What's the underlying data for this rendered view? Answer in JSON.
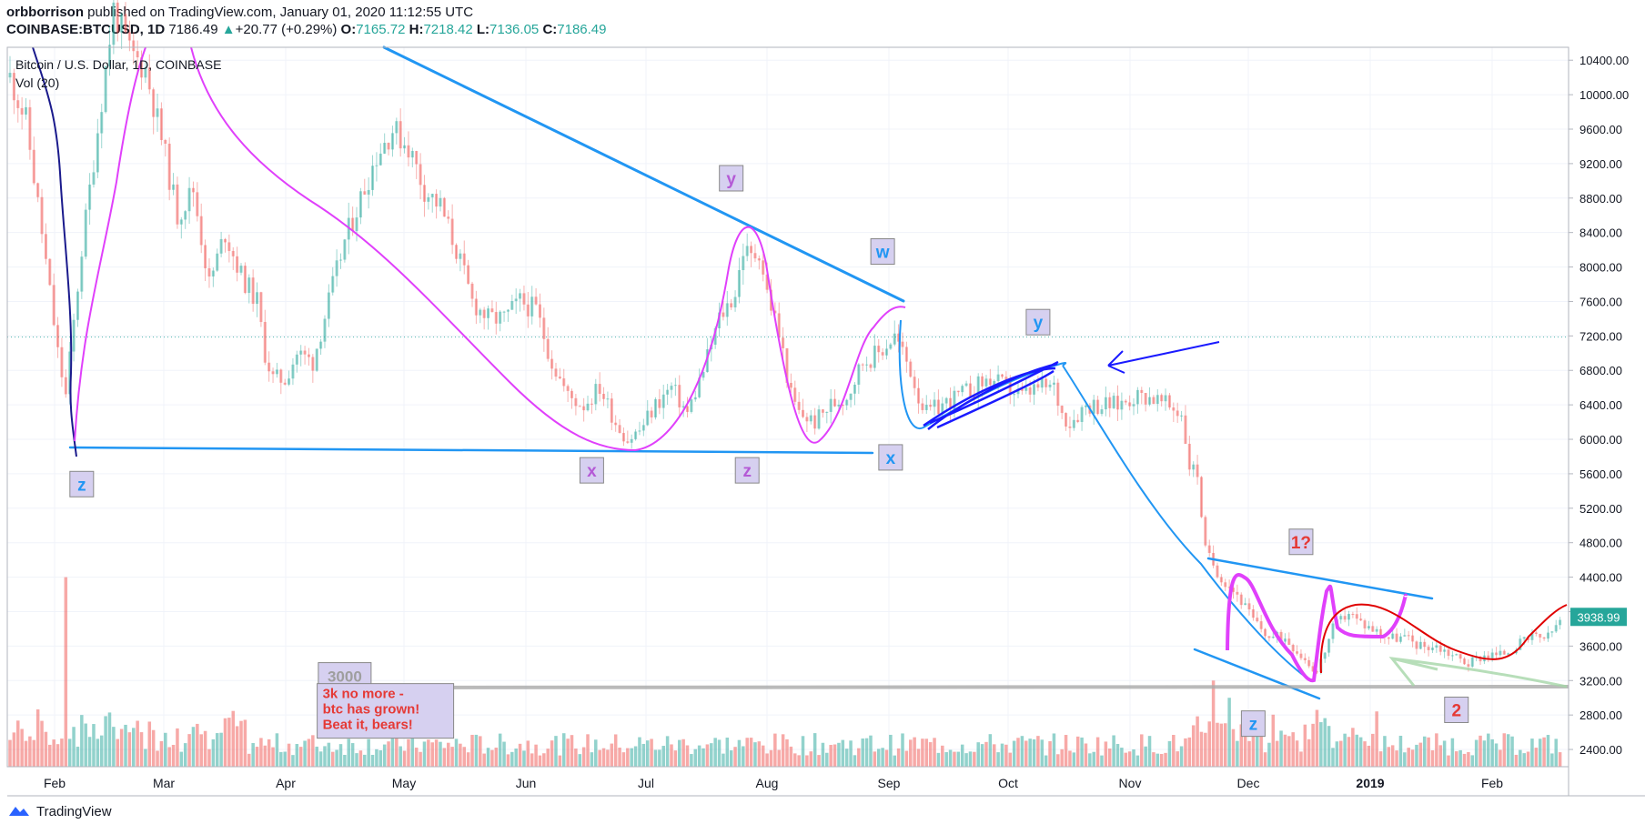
{
  "header": {
    "author": "orbborrison",
    "published_text": "published on TradingView.com, January 01, 2020 11:12:55 UTC",
    "symbol": "COINBASE:BTCUSD, 1D",
    "last": "7186.49",
    "change": "+20.77 (+0.29%)",
    "o_label": "O:",
    "o": "7165.72",
    "h_label": "H:",
    "h": "7218.42",
    "l_label": "L:",
    "l": "7136.05",
    "c_label": "C:",
    "c": "7186.49"
  },
  "legend": {
    "series_title": "Bitcoin / U.S. Dollar, 1D, COINBASE",
    "volume_title": "Vol (20)"
  },
  "footer": {
    "brand": "TradingView"
  },
  "colors": {
    "up": "#26a69a",
    "down": "#ef5350",
    "trendline": "#2196f3",
    "magenta": "#e040fb",
    "navy": "#1a1aff",
    "red_curve": "#e00000",
    "label_bg": "#d6d0f0"
  },
  "chart_data": {
    "type": "candlestick",
    "x_ticks": [
      "Feb",
      "Mar",
      "Apr",
      "May",
      "Jun",
      "Jul",
      "Aug",
      "Sep",
      "Oct",
      "Nov",
      "Dec",
      "2019",
      "Feb"
    ],
    "y_ticks": [
      10400,
      10000,
      9600,
      9200,
      8800,
      8400,
      8000,
      7600,
      7200,
      6800,
      6400,
      6000,
      5600,
      5200,
      4800,
      4400,
      4000,
      3600,
      3200,
      2800,
      2400
    ],
    "ylim": [
      2200,
      10550
    ],
    "last_price_label": "3938.99",
    "last_price": 3938.99,
    "horizontal_line_price": 7186.49,
    "close_series": [
      [
        0,
        10200
      ],
      [
        4,
        9700
      ],
      [
        8,
        8400
      ],
      [
        12,
        7000
      ],
      [
        14,
        6500
      ],
      [
        18,
        8200
      ],
      [
        22,
        9600
      ],
      [
        26,
        11000
      ],
      [
        30,
        10500
      ],
      [
        34,
        10300
      ],
      [
        38,
        9500
      ],
      [
        42,
        8600
      ],
      [
        46,
        8900
      ],
      [
        50,
        7800
      ],
      [
        54,
        8400
      ],
      [
        58,
        7900
      ],
      [
        62,
        7600
      ],
      [
        64,
        7000
      ],
      [
        66,
        6700
      ],
      [
        69,
        6700
      ],
      [
        72,
        7000
      ],
      [
        76,
        6900
      ],
      [
        80,
        7600
      ],
      [
        84,
        8300
      ],
      [
        88,
        8800
      ],
      [
        92,
        9300
      ],
      [
        96,
        9600
      ],
      [
        100,
        9400
      ],
      [
        104,
        8900
      ],
      [
        108,
        8700
      ],
      [
        112,
        8200
      ],
      [
        116,
        7600
      ],
      [
        120,
        7400
      ],
      [
        124,
        7400
      ],
      [
        128,
        7600
      ],
      [
        132,
        7500
      ],
      [
        136,
        6900
      ],
      [
        140,
        6500
      ],
      [
        144,
        6400
      ],
      [
        148,
        6600
      ],
      [
        152,
        6200
      ],
      [
        155,
        6000
      ],
      [
        158,
        6100
      ],
      [
        162,
        6400
      ],
      [
        166,
        6600
      ],
      [
        170,
        6300
      ],
      [
        174,
        6800
      ],
      [
        178,
        7400
      ],
      [
        182,
        7700
      ],
      [
        184,
        8200
      ],
      [
        186,
        8100
      ],
      [
        188,
        8200
      ],
      [
        190,
        7700
      ],
      [
        192,
        7400
      ],
      [
        194,
        7000
      ],
      [
        196,
        6500
      ],
      [
        198,
        6300
      ],
      [
        202,
        6200
      ],
      [
        206,
        6400
      ],
      [
        210,
        6500
      ],
      [
        214,
        6900
      ],
      [
        218,
        7000
      ],
      [
        222,
        7200
      ],
      [
        224,
        7000
      ],
      [
        226,
        6800
      ],
      [
        228,
        6500
      ],
      [
        230,
        6300
      ],
      [
        234,
        6400
      ],
      [
        238,
        6500
      ],
      [
        242,
        6600
      ],
      [
        246,
        6700
      ],
      [
        250,
        6600
      ],
      [
        254,
        6500
      ],
      [
        258,
        6600
      ],
      [
        262,
        6600
      ],
      [
        264,
        6300
      ],
      [
        266,
        6200
      ],
      [
        270,
        6400
      ],
      [
        274,
        6400
      ],
      [
        278,
        6400
      ],
      [
        282,
        6500
      ],
      [
        286,
        6500
      ],
      [
        290,
        6400
      ],
      [
        294,
        6300
      ],
      [
        296,
        5700
      ],
      [
        298,
        5600
      ],
      [
        300,
        4700
      ],
      [
        304,
        4400
      ],
      [
        308,
        4200
      ],
      [
        312,
        3900
      ],
      [
        316,
        3700
      ],
      [
        320,
        3700
      ],
      [
        324,
        3500
      ],
      [
        328,
        3300
      ],
      [
        332,
        3800
      ],
      [
        336,
        4000
      ],
      [
        338,
        3900
      ],
      [
        342,
        3800
      ],
      [
        346,
        3700
      ],
      [
        350,
        3700
      ],
      [
        354,
        3600
      ],
      [
        358,
        3600
      ],
      [
        362,
        3500
      ],
      [
        366,
        3400
      ],
      [
        370,
        3500
      ],
      [
        374,
        3500
      ],
      [
        378,
        3600
      ],
      [
        382,
        3700
      ],
      [
        386,
        3700
      ],
      [
        389,
        3900
      ]
    ],
    "volume_spikes": [
      [
        14,
        4400
      ],
      [
        18,
        2800
      ],
      [
        302,
        3200
      ],
      [
        304,
        2700
      ],
      [
        306,
        3000
      ],
      [
        322,
        2600
      ],
      [
        334,
        2500
      ]
    ],
    "annotations": [
      {
        "text": "z",
        "color": "#2196f3",
        "x": 18,
        "price": 5480
      },
      {
        "text": "y",
        "color": "#b45ad6",
        "x": 181,
        "price": 9030
      },
      {
        "text": "w",
        "color": "#2196f3",
        "x": 219,
        "price": 8180
      },
      {
        "text": "x",
        "color": "#b45ad6",
        "x": 146,
        "price": 5640
      },
      {
        "text": "z",
        "color": "#b45ad6",
        "x": 185,
        "price": 5640
      },
      {
        "text": "x",
        "color": "#2196f3",
        "x": 221,
        "price": 5790
      },
      {
        "text": "y",
        "color": "#2196f3",
        "x": 258,
        "price": 7360
      },
      {
        "text": "1?",
        "color": "#e53935",
        "x": 324,
        "price": 4810
      },
      {
        "text": "z",
        "color": "#2196f3",
        "x": 312,
        "price": 2700
      },
      {
        "text": "2",
        "color": "#e53935",
        "x": 363,
        "price": 2860
      },
      {
        "text": "3000",
        "color": "#9e9e9e",
        "x": 84,
        "price": 3260
      }
    ],
    "note_box": {
      "lines": [
        "3k no more -",
        "btc has grown!",
        "Beat it, bears!"
      ],
      "color": "#e53935",
      "x": 78,
      "price": 2890
    },
    "price_level_line": 3050
  }
}
